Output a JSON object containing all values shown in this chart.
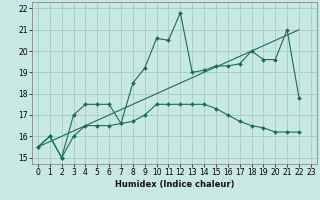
{
  "xlabel": "Humidex (Indice chaleur)",
  "xlim": [
    -0.5,
    23.5
  ],
  "ylim": [
    14.7,
    22.3
  ],
  "xticks": [
    0,
    1,
    2,
    3,
    4,
    5,
    6,
    7,
    8,
    9,
    10,
    11,
    12,
    13,
    14,
    15,
    16,
    17,
    18,
    19,
    20,
    21,
    22,
    23
  ],
  "yticks": [
    15,
    16,
    17,
    18,
    19,
    20,
    21,
    22
  ],
  "bg_color": "#c8e8e4",
  "grid_color": "#aaceca",
  "line_color": "#1a6b5a",
  "line1_x": [
    0,
    1,
    2,
    3,
    4,
    5,
    6,
    7,
    8,
    9,
    10,
    11,
    12,
    13,
    14,
    15,
    16,
    17,
    18,
    19,
    20,
    21,
    22
  ],
  "line1_y": [
    15.5,
    16.0,
    15.0,
    17.0,
    17.5,
    17.5,
    17.5,
    16.6,
    18.5,
    19.2,
    20.6,
    20.5,
    21.8,
    19.0,
    19.1,
    19.3,
    19.3,
    19.4,
    20.0,
    19.6,
    19.6,
    21.0,
    17.8
  ],
  "line2_x": [
    0,
    1,
    2,
    3,
    4,
    5,
    6,
    7,
    8,
    9,
    10,
    11,
    12,
    13,
    14,
    15,
    16,
    17,
    18,
    19,
    20,
    21,
    22
  ],
  "line2_y": [
    15.5,
    16.0,
    15.0,
    16.0,
    16.5,
    16.5,
    16.5,
    16.6,
    16.7,
    17.0,
    17.5,
    17.5,
    17.5,
    17.5,
    17.5,
    17.3,
    17.0,
    16.7,
    16.5,
    16.4,
    16.2,
    16.2,
    16.2
  ],
  "line3_x": [
    0,
    22
  ],
  "line3_y": [
    15.5,
    21.0
  ]
}
